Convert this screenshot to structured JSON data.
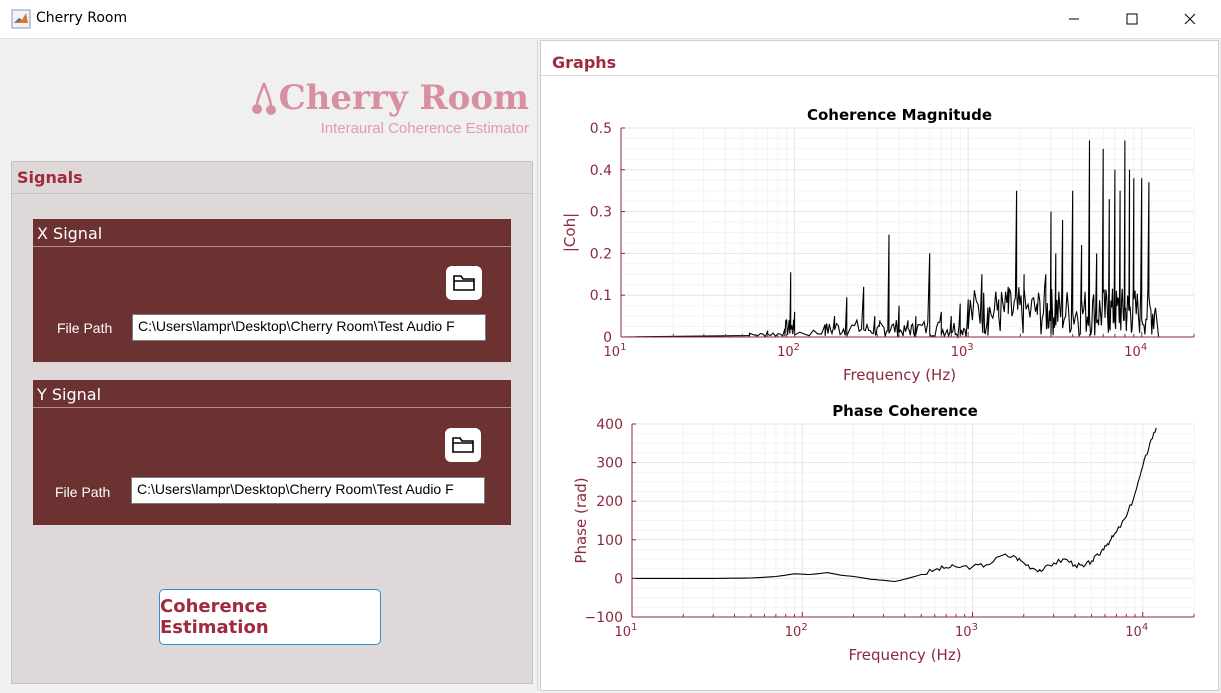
{
  "window": {
    "title": "Cherry Room"
  },
  "logo": {
    "title": "Cherry Room",
    "subtitle": "Interaural Coherence Estimator"
  },
  "signals": {
    "title": "Signals",
    "x": {
      "title": "X Signal",
      "file_path_label": "File Path",
      "file_path_value": "C:\\Users\\lampr\\Desktop\\Cherry Room\\Test Audio F"
    },
    "y": {
      "title": "Y Signal",
      "file_path_label": "File Path",
      "file_path_value": "C:\\Users\\lampr\\Desktop\\Cherry Room\\Test Audio F"
    }
  },
  "button": {
    "label": "Coherence Estimation"
  },
  "graphs": {
    "title": "Graphs"
  },
  "colors": {
    "accent": "#a02a3e",
    "signal_box": "#6c3232",
    "panel_bg": "#dfd8d8",
    "axis": "#8b2a3c",
    "logo": "#d88fa0"
  },
  "chart_data": [
    {
      "type": "line",
      "title": "Coherence Magnitude",
      "xlabel": "Frequency (Hz)",
      "ylabel": "|Coh|",
      "xscale": "log",
      "xlim": [
        10,
        20000
      ],
      "ylim": [
        0,
        0.5
      ],
      "yticks": [
        "0",
        "0.1",
        "0.2",
        "0.3",
        "0.4",
        "0.5"
      ],
      "xticks": [
        {
          "base": "10",
          "exp": "1"
        },
        {
          "base": "10",
          "exp": "2"
        },
        {
          "base": "10",
          "exp": "3"
        },
        {
          "base": "10",
          "exp": "4"
        }
      ],
      "grid": true,
      "series": [
        {
          "peaks": [
            [
              55,
              0.01
            ],
            [
              70,
              0.015
            ],
            [
              88,
              0.02
            ],
            [
              95,
              0.155
            ],
            [
              100,
              0.06
            ],
            [
              150,
              0.03
            ],
            [
              170,
              0.05
            ],
            [
              200,
              0.095
            ],
            [
              250,
              0.12
            ],
            [
              290,
              0.05
            ],
            [
              310,
              0.04
            ],
            [
              350,
              0.245
            ],
            [
              400,
              0.075
            ],
            [
              450,
              0.04
            ],
            [
              500,
              0.05
            ],
            [
              600,
              0.2
            ],
            [
              700,
              0.06
            ],
            [
              800,
              0.05
            ],
            [
              900,
              0.08
            ],
            [
              1000,
              0.09
            ],
            [
              1200,
              0.15
            ],
            [
              1300,
              0.07
            ],
            [
              1500,
              0.09
            ],
            [
              1700,
              0.12
            ],
            [
              1900,
              0.35
            ],
            [
              2100,
              0.15
            ],
            [
              2500,
              0.08
            ],
            [
              2800,
              0.15
            ],
            [
              3000,
              0.3
            ],
            [
              3200,
              0.2
            ],
            [
              3500,
              0.28
            ],
            [
              4000,
              0.35
            ],
            [
              4500,
              0.22
            ],
            [
              5000,
              0.47
            ],
            [
              5500,
              0.2
            ],
            [
              6000,
              0.45
            ],
            [
              6500,
              0.33
            ],
            [
              7000,
              0.4
            ],
            [
              7500,
              0.35
            ],
            [
              8000,
              0.47
            ],
            [
              8500,
              0.4
            ],
            [
              9000,
              0.38
            ],
            [
              10000,
              0.38
            ],
            [
              11000,
              0.37
            ],
            [
              12000,
              0.07
            ]
          ]
        }
      ]
    },
    {
      "type": "line",
      "title": "Phase Coherence",
      "xlabel": "Frequency (Hz)",
      "ylabel": "Phase (rad)",
      "xscale": "log",
      "xlim": [
        10,
        20000
      ],
      "ylim": [
        -100,
        400
      ],
      "yticks": [
        "−100",
        "0",
        "100",
        "200",
        "300",
        "400"
      ],
      "xticks": [
        {
          "base": "10",
          "exp": "1"
        },
        {
          "base": "10",
          "exp": "2"
        },
        {
          "base": "10",
          "exp": "3"
        },
        {
          "base": "10",
          "exp": "4"
        }
      ],
      "grid": true,
      "series": [
        {
          "x": [
            10,
            30,
            50,
            70,
            90,
            110,
            140,
            170,
            200,
            250,
            300,
            350,
            400,
            500,
            600,
            700,
            800,
            1000,
            1200,
            1500,
            1800,
            2000,
            2300,
            2600,
            3000,
            3500,
            4000,
            4500,
            5000,
            5500,
            6000,
            6500,
            7000,
            8000,
            9000,
            10000,
            11000,
            12000
          ],
          "y": [
            0,
            0,
            1,
            5,
            12,
            10,
            15,
            8,
            5,
            -2,
            -5,
            -8,
            -2,
            10,
            22,
            28,
            30,
            30,
            35,
            60,
            55,
            40,
            25,
            22,
            40,
            50,
            35,
            30,
            45,
            60,
            85,
            100,
            120,
            160,
            220,
            290,
            350,
            390
          ]
        }
      ]
    }
  ]
}
